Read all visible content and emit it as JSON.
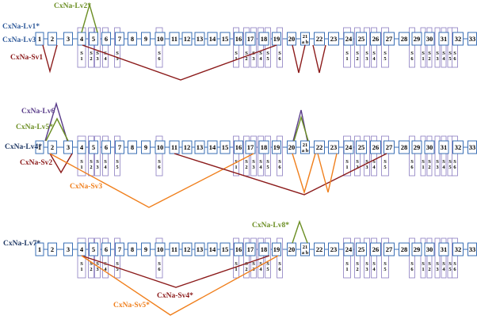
{
  "colors": {
    "exon": "#3a6fb5",
    "sub": "#8a7cc0",
    "green": "#6b8e23",
    "red": "#8b1a1a",
    "orange": "#f07f1c",
    "purple": "#5a3d8a",
    "blue": "#2f5a9a",
    "navy": "#1f3864"
  },
  "labels": {
    "lv2": "CxNa-Lv2*",
    "lv1": "CxNa-Lv1*",
    "lv3": "CxNa-Lv3",
    "sv1": "CxNa-Sv1",
    "lv6": "CxNa-Lv6",
    "lv5": "CxNa-Lv5*",
    "lv4": "CxNa-Lv4*",
    "sv2": "CxNa-Sv2",
    "sv3": "CxNa-Sv3",
    "lv8": "CxNa-Lv8*",
    "lv7": "CxNa-Lv7*",
    "sv4": "CxNa-Sv4*",
    "sv5": "CxNa-Sv5*"
  },
  "exons": [
    "1",
    "2",
    "3",
    "4",
    "5",
    "6",
    "7",
    "8",
    "9",
    "10",
    "11",
    "12",
    "13",
    "14",
    "15",
    "16",
    "17",
    "18",
    "19",
    "20",
    "21",
    "22",
    "23",
    "24",
    "25",
    "26",
    "27",
    "28",
    "29",
    "30",
    "31",
    "32",
    "33"
  ],
  "split_21": [
    "21",
    "a",
    "b"
  ],
  "sub_exons": [
    {
      "exon": "4",
      "label": "S 1"
    },
    {
      "exon": "5",
      "label": "S 2"
    },
    {
      "exon": "5",
      "label": "S 3"
    },
    {
      "exon": "6",
      "label": "S 4"
    },
    {
      "exon": "7",
      "label": "S 5"
    },
    {
      "exon": "10",
      "label": "S 6"
    },
    {
      "exon": "16",
      "label": "S 1"
    },
    {
      "exon": "17",
      "label": "S 2"
    },
    {
      "exon": "17",
      "label": "S 3"
    },
    {
      "exon": "18",
      "label": "S 4"
    },
    {
      "exon": "18",
      "label": "S 5"
    },
    {
      "exon": "19",
      "label": "S 6"
    },
    {
      "exon": "24",
      "label": "S 1"
    },
    {
      "exon": "25",
      "label": "S 2"
    },
    {
      "exon": "26",
      "label": "S 3"
    },
    {
      "exon": "26",
      "label": "S 4"
    },
    {
      "exon": "27",
      "label": "S 5"
    },
    {
      "exon": "29",
      "label": "S 6"
    },
    {
      "exon": "30",
      "label": "S 1"
    },
    {
      "exon": "30",
      "label": "S 2"
    },
    {
      "exon": "31",
      "label": "S 3"
    },
    {
      "exon": "31",
      "label": "S 4"
    },
    {
      "exon": "31",
      "label": "S 5"
    },
    {
      "exon": "32",
      "label": "S 6"
    }
  ]
}
